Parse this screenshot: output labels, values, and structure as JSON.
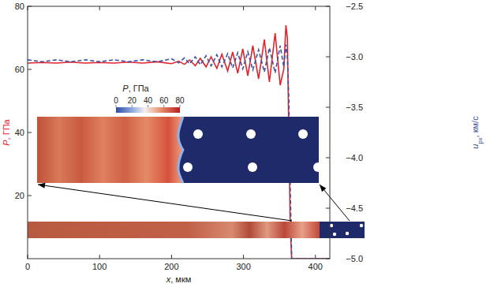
{
  "chart_data": {
    "type": "line",
    "xlabel": [
      "x",
      ", мкм"
    ],
    "ylabel": [
      "P",
      ", ГПа"
    ],
    "y2label": [
      "u",
      "px",
      ", км/с"
    ],
    "x": [
      0,
      20,
      40,
      60,
      80,
      100,
      120,
      140,
      160,
      180,
      200,
      210,
      218,
      225,
      233,
      240,
      248,
      255,
      263,
      270,
      278,
      285,
      292,
      299,
      306,
      313,
      321,
      329,
      336,
      344,
      351,
      356,
      359,
      361,
      363,
      365,
      367,
      375,
      390,
      420
    ],
    "series": [
      {
        "name": "P",
        "color": "#e3232c",
        "line_style": "solid",
        "values": [
          62,
          62.2,
          62,
          62.3,
          62,
          62.2,
          62,
          62.3,
          62,
          62.4,
          61.8,
          62.6,
          61.6,
          63,
          61.2,
          63.5,
          60.8,
          64,
          60.3,
          64.8,
          59.5,
          65.5,
          58.8,
          66.5,
          58,
          67.5,
          57,
          69.5,
          56,
          71.5,
          55,
          60,
          74,
          70,
          40,
          10,
          0,
          0,
          0,
          0
        ]
      },
      {
        "name": "u",
        "color": "#3d52a3",
        "line_style": "dashed",
        "axis": "y2",
        "values": [
          -3.03,
          -3.05,
          -3.03,
          -3.05,
          -3.03,
          -3.05,
          -3.03,
          -3.05,
          -3.03,
          -3.05,
          -3.02,
          -3.06,
          -3.01,
          -3.07,
          -3.0,
          -3.08,
          -2.99,
          -3.09,
          -2.98,
          -3.1,
          -2.97,
          -3.11,
          -2.96,
          -3.12,
          -2.95,
          -3.13,
          -2.93,
          -3.15,
          -2.91,
          -3.16,
          -2.89,
          -3.1,
          -2.88,
          -3.0,
          -3.4,
          -4.3,
          -5.0,
          -5.0,
          -5.0,
          -5.0
        ]
      }
    ],
    "xlim": [
      0,
      420
    ],
    "xticks": [
      0,
      100,
      200,
      300,
      400
    ],
    "ylim": [
      0,
      80
    ],
    "yticks": [
      20,
      40,
      60,
      80
    ],
    "y2lim": [
      -5.0,
      -2.5
    ],
    "y2ticks": [
      {
        "value": -2.5,
        "label": "−2.5"
      },
      {
        "value": -3.0,
        "label": "−3.0"
      },
      {
        "value": -3.5,
        "label": "−3.5"
      },
      {
        "value": -4.0,
        "label": "−4.0"
      },
      {
        "value": -4.5,
        "label": "−4.5"
      },
      {
        "value": -5.0,
        "label": "−5.0"
      }
    ],
    "grid": false,
    "colorbar": {
      "label": [
        "P",
        ", ГПа"
      ],
      "range": [
        0,
        80
      ],
      "ticks": [
        0,
        20,
        40,
        60,
        80
      ]
    }
  }
}
